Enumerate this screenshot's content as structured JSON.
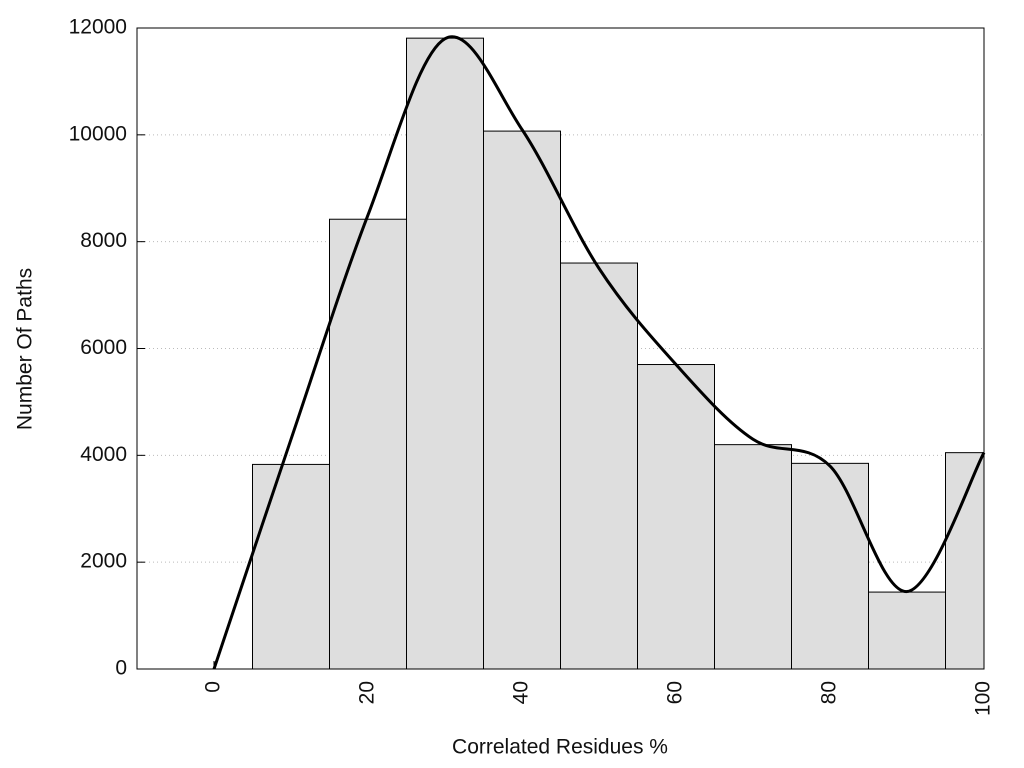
{
  "chart_data": {
    "type": "histogram",
    "xlabel": "Correlated Residues %",
    "ylabel": "Number Of Paths",
    "bins": [
      5,
      15,
      25,
      35,
      45,
      55,
      65,
      75,
      85,
      95,
      100
    ],
    "values": [
      3830,
      8420,
      11810,
      10070,
      7600,
      5700,
      4200,
      3850,
      1440,
      4050
    ],
    "color": "#dedede",
    "line": {
      "x": [
        0,
        10,
        20,
        30,
        40,
        50,
        60,
        70,
        80,
        90,
        100
      ],
      "values": [
        0,
        4300,
        8500,
        11800,
        10100,
        7500,
        5700,
        4300,
        3800,
        1450,
        4050
      ],
      "color": "#000000"
    },
    "xlim": [
      -10,
      100
    ],
    "ylim": [
      0,
      12000
    ],
    "xticks": [
      0,
      20,
      40,
      60,
      80,
      100
    ],
    "yticks": [
      0,
      2000,
      4000,
      6000,
      8000,
      10000,
      12000
    ],
    "grid": true
  }
}
